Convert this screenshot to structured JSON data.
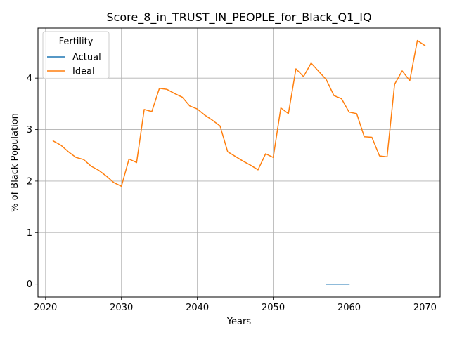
{
  "chart_data": {
    "type": "line",
    "title": "Score_8_in_TRUST_IN_PEOPLE_for_Black_Q1_IQ",
    "xlabel": "Years",
    "ylabel": "% of Black Population",
    "xlim": [
      2019,
      2072
    ],
    "ylim": [
      -0.25,
      4.97
    ],
    "xticks": [
      2020,
      2030,
      2040,
      2050,
      2060,
      2070
    ],
    "yticks": [
      0,
      1,
      2,
      3,
      4
    ],
    "grid": true,
    "legend": {
      "title": "Fertility",
      "position": "top-left"
    },
    "series": [
      {
        "name": "Actual",
        "color": "#1f77b4",
        "x": [
          2057,
          2058,
          2059,
          2060
        ],
        "y": [
          0,
          0,
          0,
          0
        ]
      },
      {
        "name": "Ideal",
        "color": "#ff7f0e",
        "x": [
          2021,
          2022,
          2023,
          2024,
          2025,
          2026,
          2027,
          2028,
          2029,
          2030,
          2031,
          2032,
          2033,
          2034,
          2035,
          2036,
          2037,
          2038,
          2039,
          2040,
          2041,
          2042,
          2043,
          2044,
          2045,
          2046,
          2047,
          2048,
          2049,
          2050,
          2051,
          2052,
          2053,
          2054,
          2055,
          2056,
          2057,
          2058,
          2059,
          2060,
          2061,
          2062,
          2063,
          2064,
          2065,
          2066,
          2067,
          2068,
          2069,
          2070
        ],
        "y": [
          2.78,
          2.7,
          2.57,
          2.46,
          2.42,
          2.29,
          2.21,
          2.1,
          1.97,
          1.9,
          2.43,
          2.36,
          3.39,
          3.35,
          3.8,
          3.78,
          3.7,
          3.63,
          3.46,
          3.4,
          3.28,
          3.18,
          3.07,
          2.57,
          2.48,
          2.39,
          2.31,
          2.22,
          2.53,
          2.46,
          3.42,
          3.31,
          4.18,
          4.03,
          4.29,
          4.13,
          3.97,
          3.66,
          3.6,
          3.34,
          3.31,
          2.86,
          2.85,
          2.49,
          2.47,
          3.88,
          4.14,
          3.95,
          4.73,
          4.63
        ]
      }
    ]
  }
}
